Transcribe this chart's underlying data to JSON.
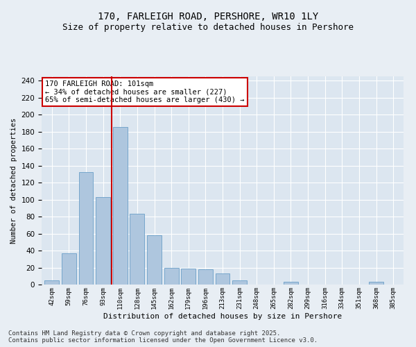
{
  "title1": "170, FARLEIGH ROAD, PERSHORE, WR10 1LY",
  "title2": "Size of property relative to detached houses in Pershore",
  "xlabel": "Distribution of detached houses by size in Pershore",
  "ylabel": "Number of detached properties",
  "categories": [
    "42sqm",
    "59sqm",
    "76sqm",
    "93sqm",
    "110sqm",
    "128sqm",
    "145sqm",
    "162sqm",
    "179sqm",
    "196sqm",
    "213sqm",
    "231sqm",
    "248sqm",
    "265sqm",
    "282sqm",
    "299sqm",
    "316sqm",
    "334sqm",
    "351sqm",
    "368sqm",
    "385sqm"
  ],
  "values": [
    5,
    37,
    132,
    103,
    185,
    83,
    58,
    20,
    19,
    18,
    13,
    5,
    0,
    0,
    3,
    0,
    0,
    0,
    0,
    3,
    0
  ],
  "bar_color": "#aec6de",
  "bar_edge_color": "#6a9fc8",
  "bar_width": 0.85,
  "vline_x": 3.5,
  "vline_color": "#cc0000",
  "annotation_text": "170 FARLEIGH ROAD: 101sqm\n← 34% of detached houses are smaller (227)\n65% of semi-detached houses are larger (430) →",
  "annotation_box_color": "#ffffff",
  "annotation_box_edge": "#cc0000",
  "annotation_fontsize": 7.5,
  "bg_color": "#e8eef4",
  "plot_bg_color": "#dce6f0",
  "grid_color": "#ffffff",
  "title_fontsize": 10,
  "subtitle_fontsize": 9,
  "footer": "Contains HM Land Registry data © Crown copyright and database right 2025.\nContains public sector information licensed under the Open Government Licence v3.0.",
  "footer_fontsize": 6.5,
  "ylim": [
    0,
    245
  ],
  "yticks": [
    0,
    20,
    40,
    60,
    80,
    100,
    120,
    140,
    160,
    180,
    200,
    220,
    240
  ]
}
